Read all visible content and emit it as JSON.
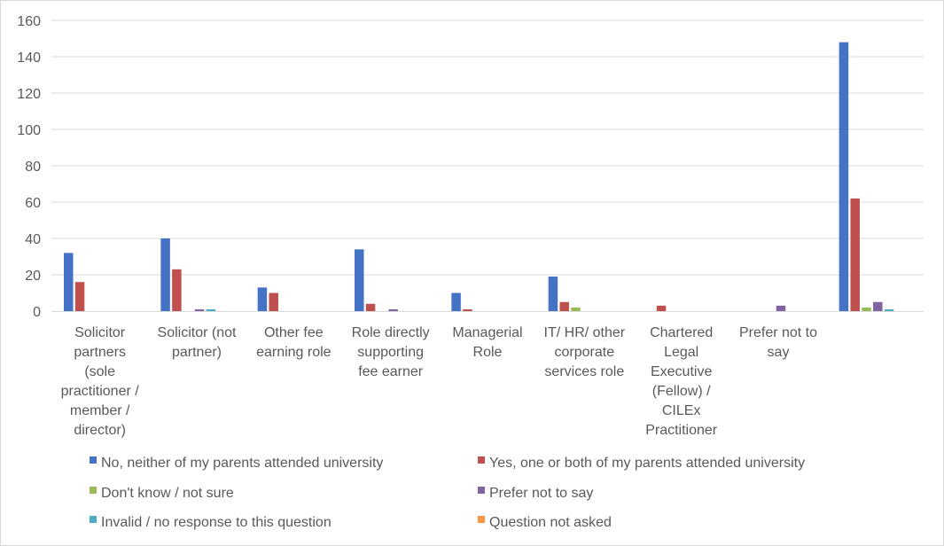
{
  "chart_data": {
    "type": "bar",
    "categories": [
      [
        "Solicitor",
        "partners",
        "(sole",
        "practitioner /",
        "member /",
        "director)"
      ],
      [
        "Solicitor (not",
        "partner)"
      ],
      [
        "Other fee",
        "earning role"
      ],
      [
        "Role directly",
        "supporting",
        "fee earner"
      ],
      [
        "Managerial",
        "Role"
      ],
      [
        "IT/ HR/ other",
        "corporate",
        "services role"
      ],
      [
        "Chartered",
        "Legal",
        "Executive",
        "(Fellow) /",
        "CILEx",
        "Practitioner"
      ],
      [
        "Prefer not to",
        "say"
      ],
      []
    ],
    "series": [
      {
        "name": "No, neither of my parents attended university",
        "color": "#4472C4",
        "values": [
          32,
          40,
          13,
          34,
          10,
          19,
          0,
          0,
          148
        ]
      },
      {
        "name": "Yes, one or both of my parents attended university",
        "color": "#C0504D",
        "values": [
          16,
          23,
          10,
          4,
          1,
          5,
          3,
          0,
          62
        ]
      },
      {
        "name": "Don't know / not sure",
        "color": "#9BBB59",
        "values": [
          0,
          0,
          0,
          0,
          0,
          2,
          0,
          0,
          2
        ]
      },
      {
        "name": "Prefer not to say",
        "color": "#8064A2",
        "values": [
          0,
          1,
          0,
          1,
          0,
          0,
          0,
          3,
          5
        ]
      },
      {
        "name": "Invalid / no response to this question",
        "color": "#4BACC6",
        "values": [
          0,
          1,
          0,
          0,
          0,
          0,
          0,
          0,
          1
        ]
      },
      {
        "name": "Question not asked",
        "color": "#F79646",
        "values": [
          0,
          0,
          0,
          0,
          0,
          0,
          0,
          0,
          0
        ]
      }
    ],
    "ylim": [
      0,
      160
    ],
    "yticks": [
      0,
      20,
      40,
      60,
      80,
      100,
      120,
      140,
      160
    ],
    "grid": true,
    "legend_position": "bottom"
  }
}
